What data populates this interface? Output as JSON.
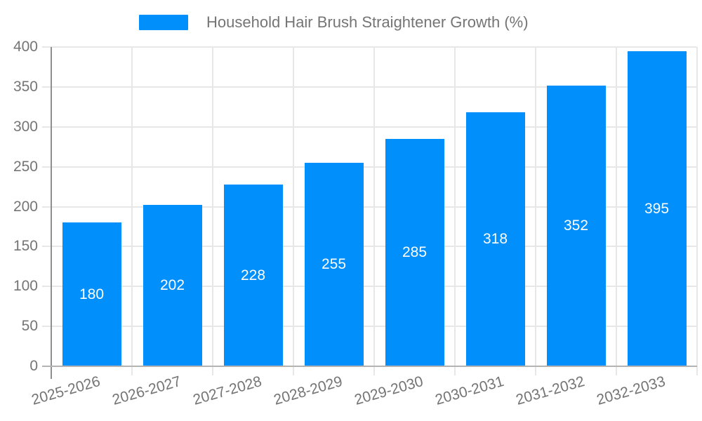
{
  "legend": {
    "items": [
      {
        "label": "Household Hair Brush Straightener Growth (%)",
        "color": "#008FFB"
      }
    ]
  },
  "chart_data": {
    "type": "bar",
    "title": "Household Hair Brush Straightener Growth (%)",
    "categories": [
      "2025-2026",
      "2026-2027",
      "2027-2028",
      "2028-2029",
      "2029-2030",
      "2030-2031",
      "2031-2032",
      "2032-2033"
    ],
    "series": [
      {
        "name": "Household Hair Brush Straightener Growth (%)",
        "values": [
          180,
          202,
          228,
          255,
          285,
          318,
          352,
          395
        ]
      }
    ],
    "value_labels_shown": true,
    "xlabel": "",
    "ylabel": "",
    "ylim": [
      0,
      400
    ],
    "yticks": [
      0,
      50,
      100,
      150,
      200,
      250,
      300,
      350,
      400
    ],
    "grid": true,
    "legend_position": "top",
    "colors": {
      "bar": "#008FFB",
      "value_label": "#ffffff",
      "axis_text": "#757575",
      "grid": "#e7e7e7",
      "axis_line": "#8f8f8f",
      "baseline": "#b3b3b3"
    }
  }
}
